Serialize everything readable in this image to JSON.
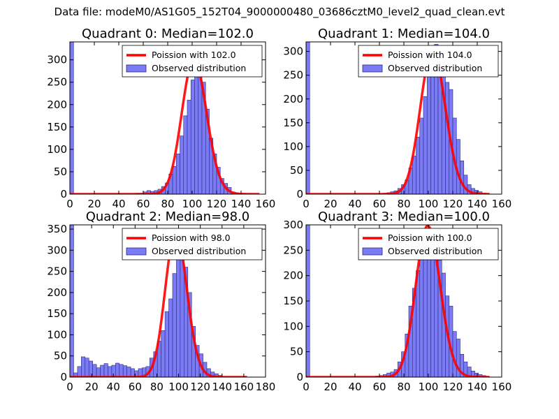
{
  "suptitle": "Data file: modeM0/AS1G05_152T04_9000000480_03686cztM0_level2_quad_clean.evt",
  "colors": {
    "bar_fill": "#7b7bf5",
    "bar_edge": "#2a2a7a",
    "curve": "#ff0000",
    "axis": "#000000"
  },
  "chart_data": [
    {
      "type": "bar",
      "title": "Quadrant 0: Median=102.0",
      "xlim": [
        0,
        160
      ],
      "ylim": [
        0,
        340
      ],
      "xticks": [
        0,
        20,
        40,
        60,
        80,
        100,
        120,
        140,
        160
      ],
      "yticks": [
        0,
        50,
        100,
        150,
        200,
        250,
        300
      ],
      "legend": {
        "position": "top-right",
        "line_label": "Poission with 102.0",
        "bar_label": "Observed distribution"
      },
      "bin_width": 3,
      "bins": [
        [
          0,
          340
        ],
        [
          54,
          2
        ],
        [
          57,
          2
        ],
        [
          60,
          5
        ],
        [
          63,
          8
        ],
        [
          66,
          6
        ],
        [
          69,
          8
        ],
        [
          72,
          11
        ],
        [
          75,
          17
        ],
        [
          78,
          25
        ],
        [
          81,
          45
        ],
        [
          84,
          62
        ],
        [
          87,
          90
        ],
        [
          90,
          130
        ],
        [
          93,
          175
        ],
        [
          96,
          210
        ],
        [
          99,
          255
        ],
        [
          102,
          270
        ],
        [
          105,
          262
        ],
        [
          108,
          250
        ],
        [
          111,
          190
        ],
        [
          114,
          125
        ],
        [
          117,
          90
        ],
        [
          120,
          60
        ],
        [
          123,
          35
        ],
        [
          126,
          24
        ],
        [
          129,
          15
        ],
        [
          132,
          5
        ],
        [
          135,
          3
        ],
        [
          138,
          2
        ],
        [
          141,
          1
        ]
      ],
      "curve": {
        "type": "poisson",
        "mean": 102.0,
        "scale": 301,
        "x_range": [
          0,
          155
        ]
      }
    },
    {
      "type": "bar",
      "title": "Quadrant 1: Median=104.0",
      "xlim": [
        0,
        160
      ],
      "ylim": [
        0,
        320
      ],
      "xticks": [
        0,
        20,
        40,
        60,
        80,
        100,
        120,
        140,
        160
      ],
      "yticks": [
        0,
        50,
        100,
        150,
        200,
        250,
        300
      ],
      "legend": {
        "position": "top-right",
        "line_label": "Poission with 104.0",
        "bar_label": "Observed distribution"
      },
      "bin_width": 3,
      "bins": [
        [
          0,
          320
        ],
        [
          63,
          2
        ],
        [
          66,
          3
        ],
        [
          69,
          5
        ],
        [
          72,
          7
        ],
        [
          75,
          12
        ],
        [
          78,
          20
        ],
        [
          81,
          30
        ],
        [
          84,
          55
        ],
        [
          87,
          80
        ],
        [
          90,
          120
        ],
        [
          93,
          160
        ],
        [
          96,
          205
        ],
        [
          99,
          260
        ],
        [
          102,
          295
        ],
        [
          105,
          315
        ],
        [
          108,
          305
        ],
        [
          111,
          258
        ],
        [
          114,
          235
        ],
        [
          117,
          220
        ],
        [
          120,
          160
        ],
        [
          123,
          115
        ],
        [
          126,
          70
        ],
        [
          129,
          40
        ],
        [
          132,
          20
        ],
        [
          135,
          12
        ],
        [
          138,
          8
        ],
        [
          141,
          5
        ],
        [
          144,
          2
        ],
        [
          147,
          1
        ]
      ],
      "curve": {
        "type": "poisson",
        "mean": 104.0,
        "scale": 302,
        "x_range": [
          0,
          150
        ]
      }
    },
    {
      "type": "bar",
      "title": "Quadrant 2: Median=98.0",
      "xlim": [
        0,
        180
      ],
      "ylim": [
        0,
        360
      ],
      "xticks": [
        0,
        20,
        40,
        60,
        80,
        100,
        120,
        140,
        160,
        180
      ],
      "yticks": [
        0,
        50,
        100,
        150,
        200,
        250,
        300,
        350
      ],
      "legend": {
        "position": "top-right",
        "line_label": "Poission with 98.0",
        "bar_label": "Observed distribution"
      },
      "bin_width": 3.5,
      "bins": [
        [
          0,
          360
        ],
        [
          3.5,
          10
        ],
        [
          7,
          25
        ],
        [
          10.5,
          48
        ],
        [
          14,
          45
        ],
        [
          17.5,
          38
        ],
        [
          21,
          30
        ],
        [
          24.5,
          22
        ],
        [
          28,
          28
        ],
        [
          31.5,
          32
        ],
        [
          35,
          25
        ],
        [
          38.5,
          28
        ],
        [
          42,
          33
        ],
        [
          45.5,
          30
        ],
        [
          49,
          27
        ],
        [
          52.5,
          24
        ],
        [
          56,
          20
        ],
        [
          59.5,
          15
        ],
        [
          63,
          20
        ],
        [
          66.5,
          22
        ],
        [
          70,
          25
        ],
        [
          73.5,
          45
        ],
        [
          77,
          60
        ],
        [
          80.5,
          85
        ],
        [
          84,
          110
        ],
        [
          87.5,
          155
        ],
        [
          91,
          185
        ],
        [
          94.5,
          245
        ],
        [
          98,
          335
        ],
        [
          101.5,
          345
        ],
        [
          105,
          260
        ],
        [
          108.5,
          200
        ],
        [
          112,
          120
        ],
        [
          115.5,
          75
        ],
        [
          119,
          55
        ],
        [
          122.5,
          35
        ],
        [
          126,
          20
        ],
        [
          129.5,
          12
        ],
        [
          133,
          8
        ],
        [
          136.5,
          4
        ]
      ],
      "curve": {
        "type": "poisson",
        "mean": 98.0,
        "scale": 345,
        "x_range": [
          0,
          163
        ]
      }
    },
    {
      "type": "bar",
      "title": "Quadrant 3: Median=100.0",
      "xlim": [
        0,
        160
      ],
      "ylim": [
        0,
        300
      ],
      "xticks": [
        0,
        20,
        40,
        60,
        80,
        100,
        120,
        140,
        160
      ],
      "yticks": [
        0,
        50,
        100,
        150,
        200,
        250,
        300
      ],
      "legend": {
        "position": "top-right",
        "line_label": "Poission with 100.0",
        "bar_label": "Observed distribution"
      },
      "bin_width": 3,
      "bins": [
        [
          0,
          300
        ],
        [
          57,
          2
        ],
        [
          60,
          3
        ],
        [
          63,
          5
        ],
        [
          66,
          8
        ],
        [
          69,
          10
        ],
        [
          72,
          15
        ],
        [
          75,
          30
        ],
        [
          78,
          50
        ],
        [
          81,
          85
        ],
        [
          84,
          140
        ],
        [
          87,
          175
        ],
        [
          90,
          210
        ],
        [
          93,
          240
        ],
        [
          96,
          275
        ],
        [
          99,
          280
        ],
        [
          102,
          260
        ],
        [
          105,
          250
        ],
        [
          108,
          230
        ],
        [
          111,
          205
        ],
        [
          114,
          160
        ],
        [
          117,
          140
        ],
        [
          120,
          90
        ],
        [
          123,
          75
        ],
        [
          126,
          45
        ],
        [
          129,
          30
        ],
        [
          132,
          20
        ],
        [
          135,
          12
        ],
        [
          138,
          8
        ],
        [
          141,
          5
        ],
        [
          144,
          3
        ],
        [
          147,
          1
        ]
      ],
      "curve": {
        "type": "poisson",
        "mean": 100.0,
        "scale": 298,
        "x_range": [
          0,
          150
        ]
      }
    }
  ]
}
